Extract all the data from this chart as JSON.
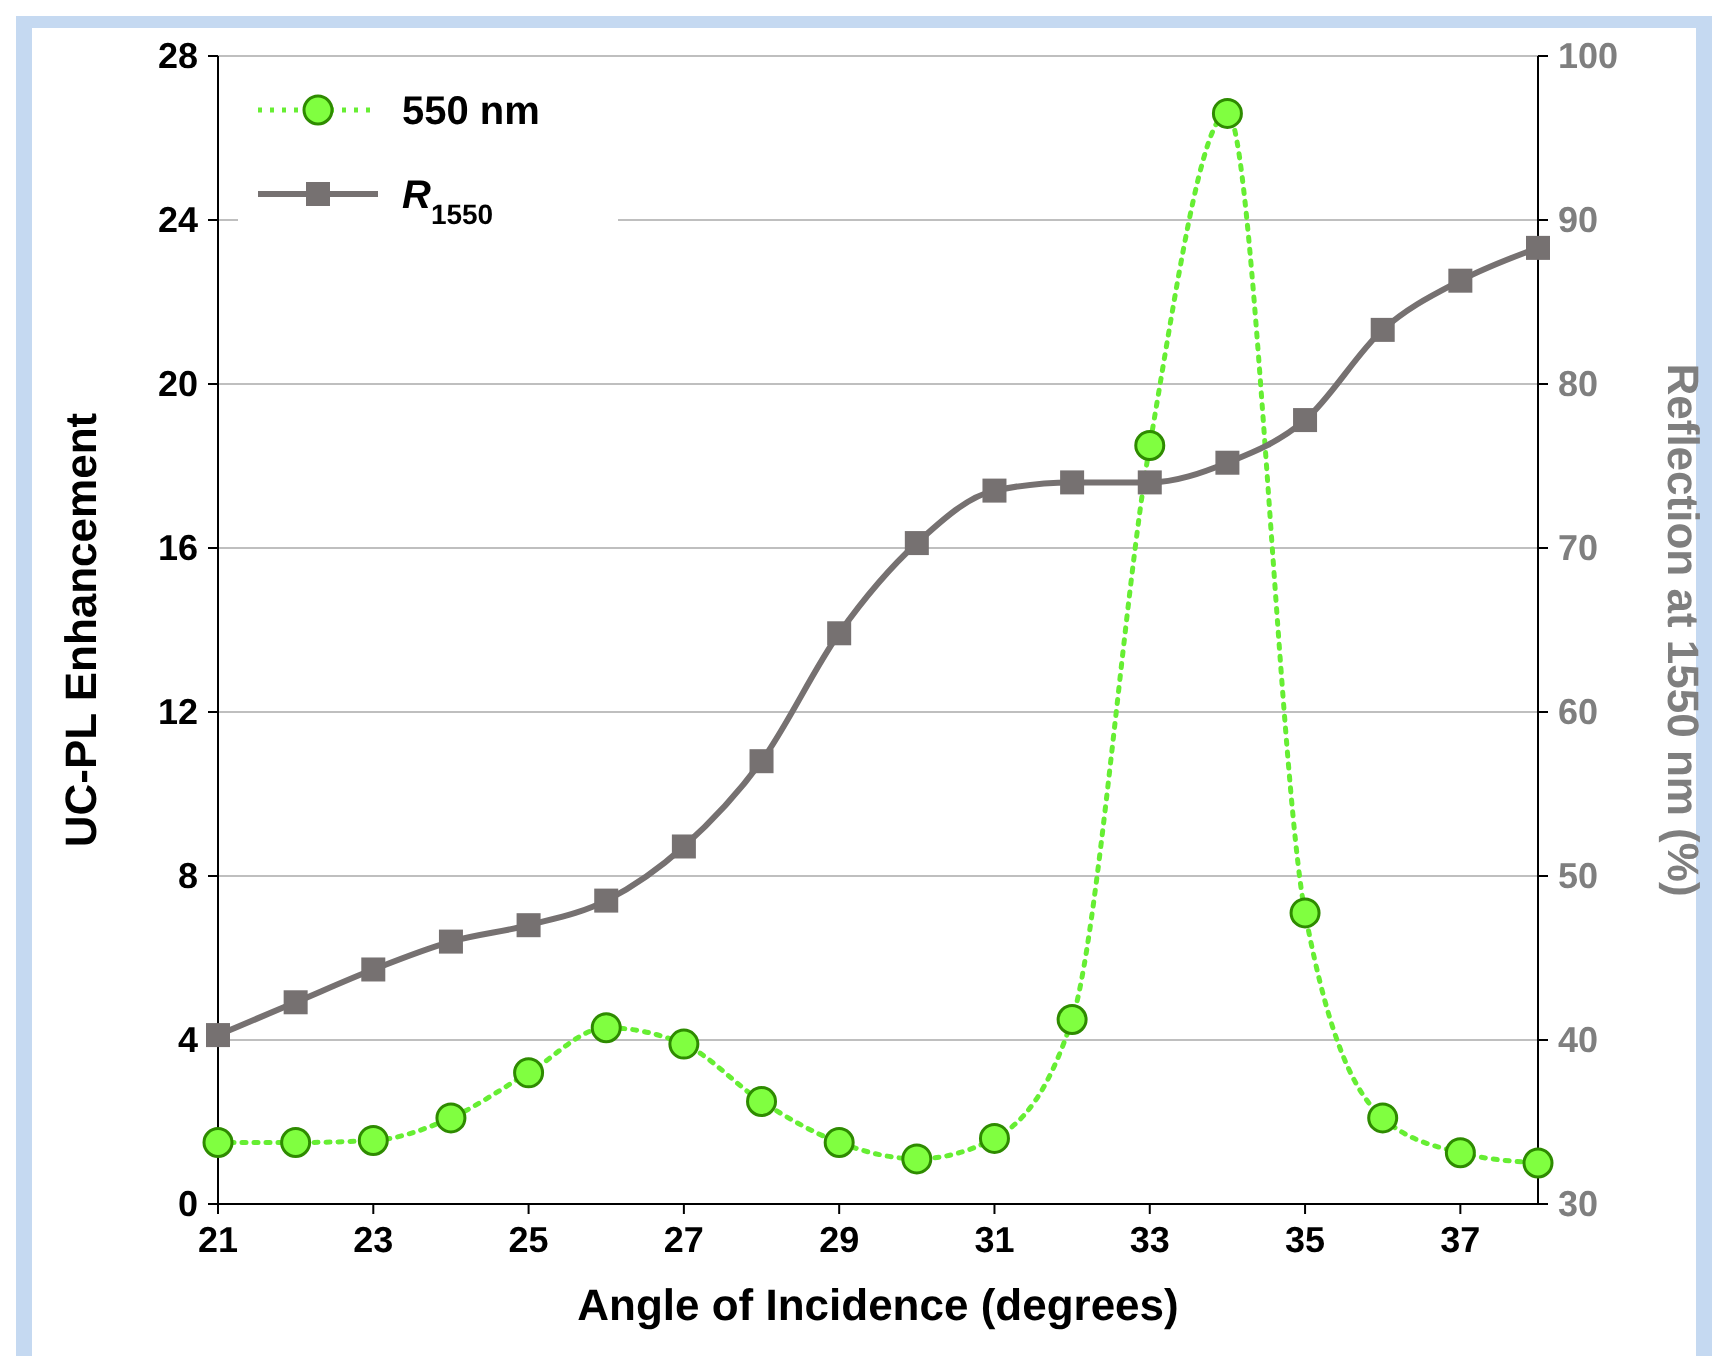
{
  "chart_data": {
    "type": "line",
    "xlabel": "Angle of Incidence (degrees)",
    "ylabel": "UC-PL Enhancement",
    "y2label": "Reflection at 1550 nm (%)",
    "x": [
      21,
      22,
      23,
      24,
      25,
      26,
      27,
      28,
      29,
      30,
      31,
      32,
      33,
      34,
      35,
      36,
      37,
      38
    ],
    "xlim": [
      21,
      38
    ],
    "xticks": [
      21,
      23,
      25,
      27,
      29,
      31,
      33,
      35,
      37
    ],
    "ylim": [
      0,
      28
    ],
    "yticks": [
      0,
      4,
      8,
      12,
      16,
      20,
      24,
      28
    ],
    "y2lim": [
      30,
      100
    ],
    "y2ticks": [
      30,
      40,
      50,
      60,
      70,
      80,
      90,
      100
    ],
    "grid": "y",
    "legend": "top left",
    "series": [
      {
        "name": "550 nm",
        "color": "#66ee33",
        "marker": "circle",
        "line_style": "dotted",
        "values": [
          1.5,
          1.5,
          1.55,
          2.1,
          3.2,
          4.3,
          3.9,
          2.5,
          1.5,
          1.1,
          1.6,
          4.5,
          18.5,
          26.6,
          7.1,
          2.1,
          1.25,
          1.0
        ]
      },
      {
        "name": "R$_{1550}$",
        "color": "#767171",
        "marker": "square",
        "line_style": "solid",
        "axis": "y2",
        "values": [
          40.3,
          42.3,
          44.3,
          46,
          47,
          48.5,
          51.8,
          57,
          64.8,
          70.3,
          73.5,
          74,
          74,
          75.2,
          77.8,
          83.3,
          86.3,
          88.3
        ]
      }
    ]
  }
}
